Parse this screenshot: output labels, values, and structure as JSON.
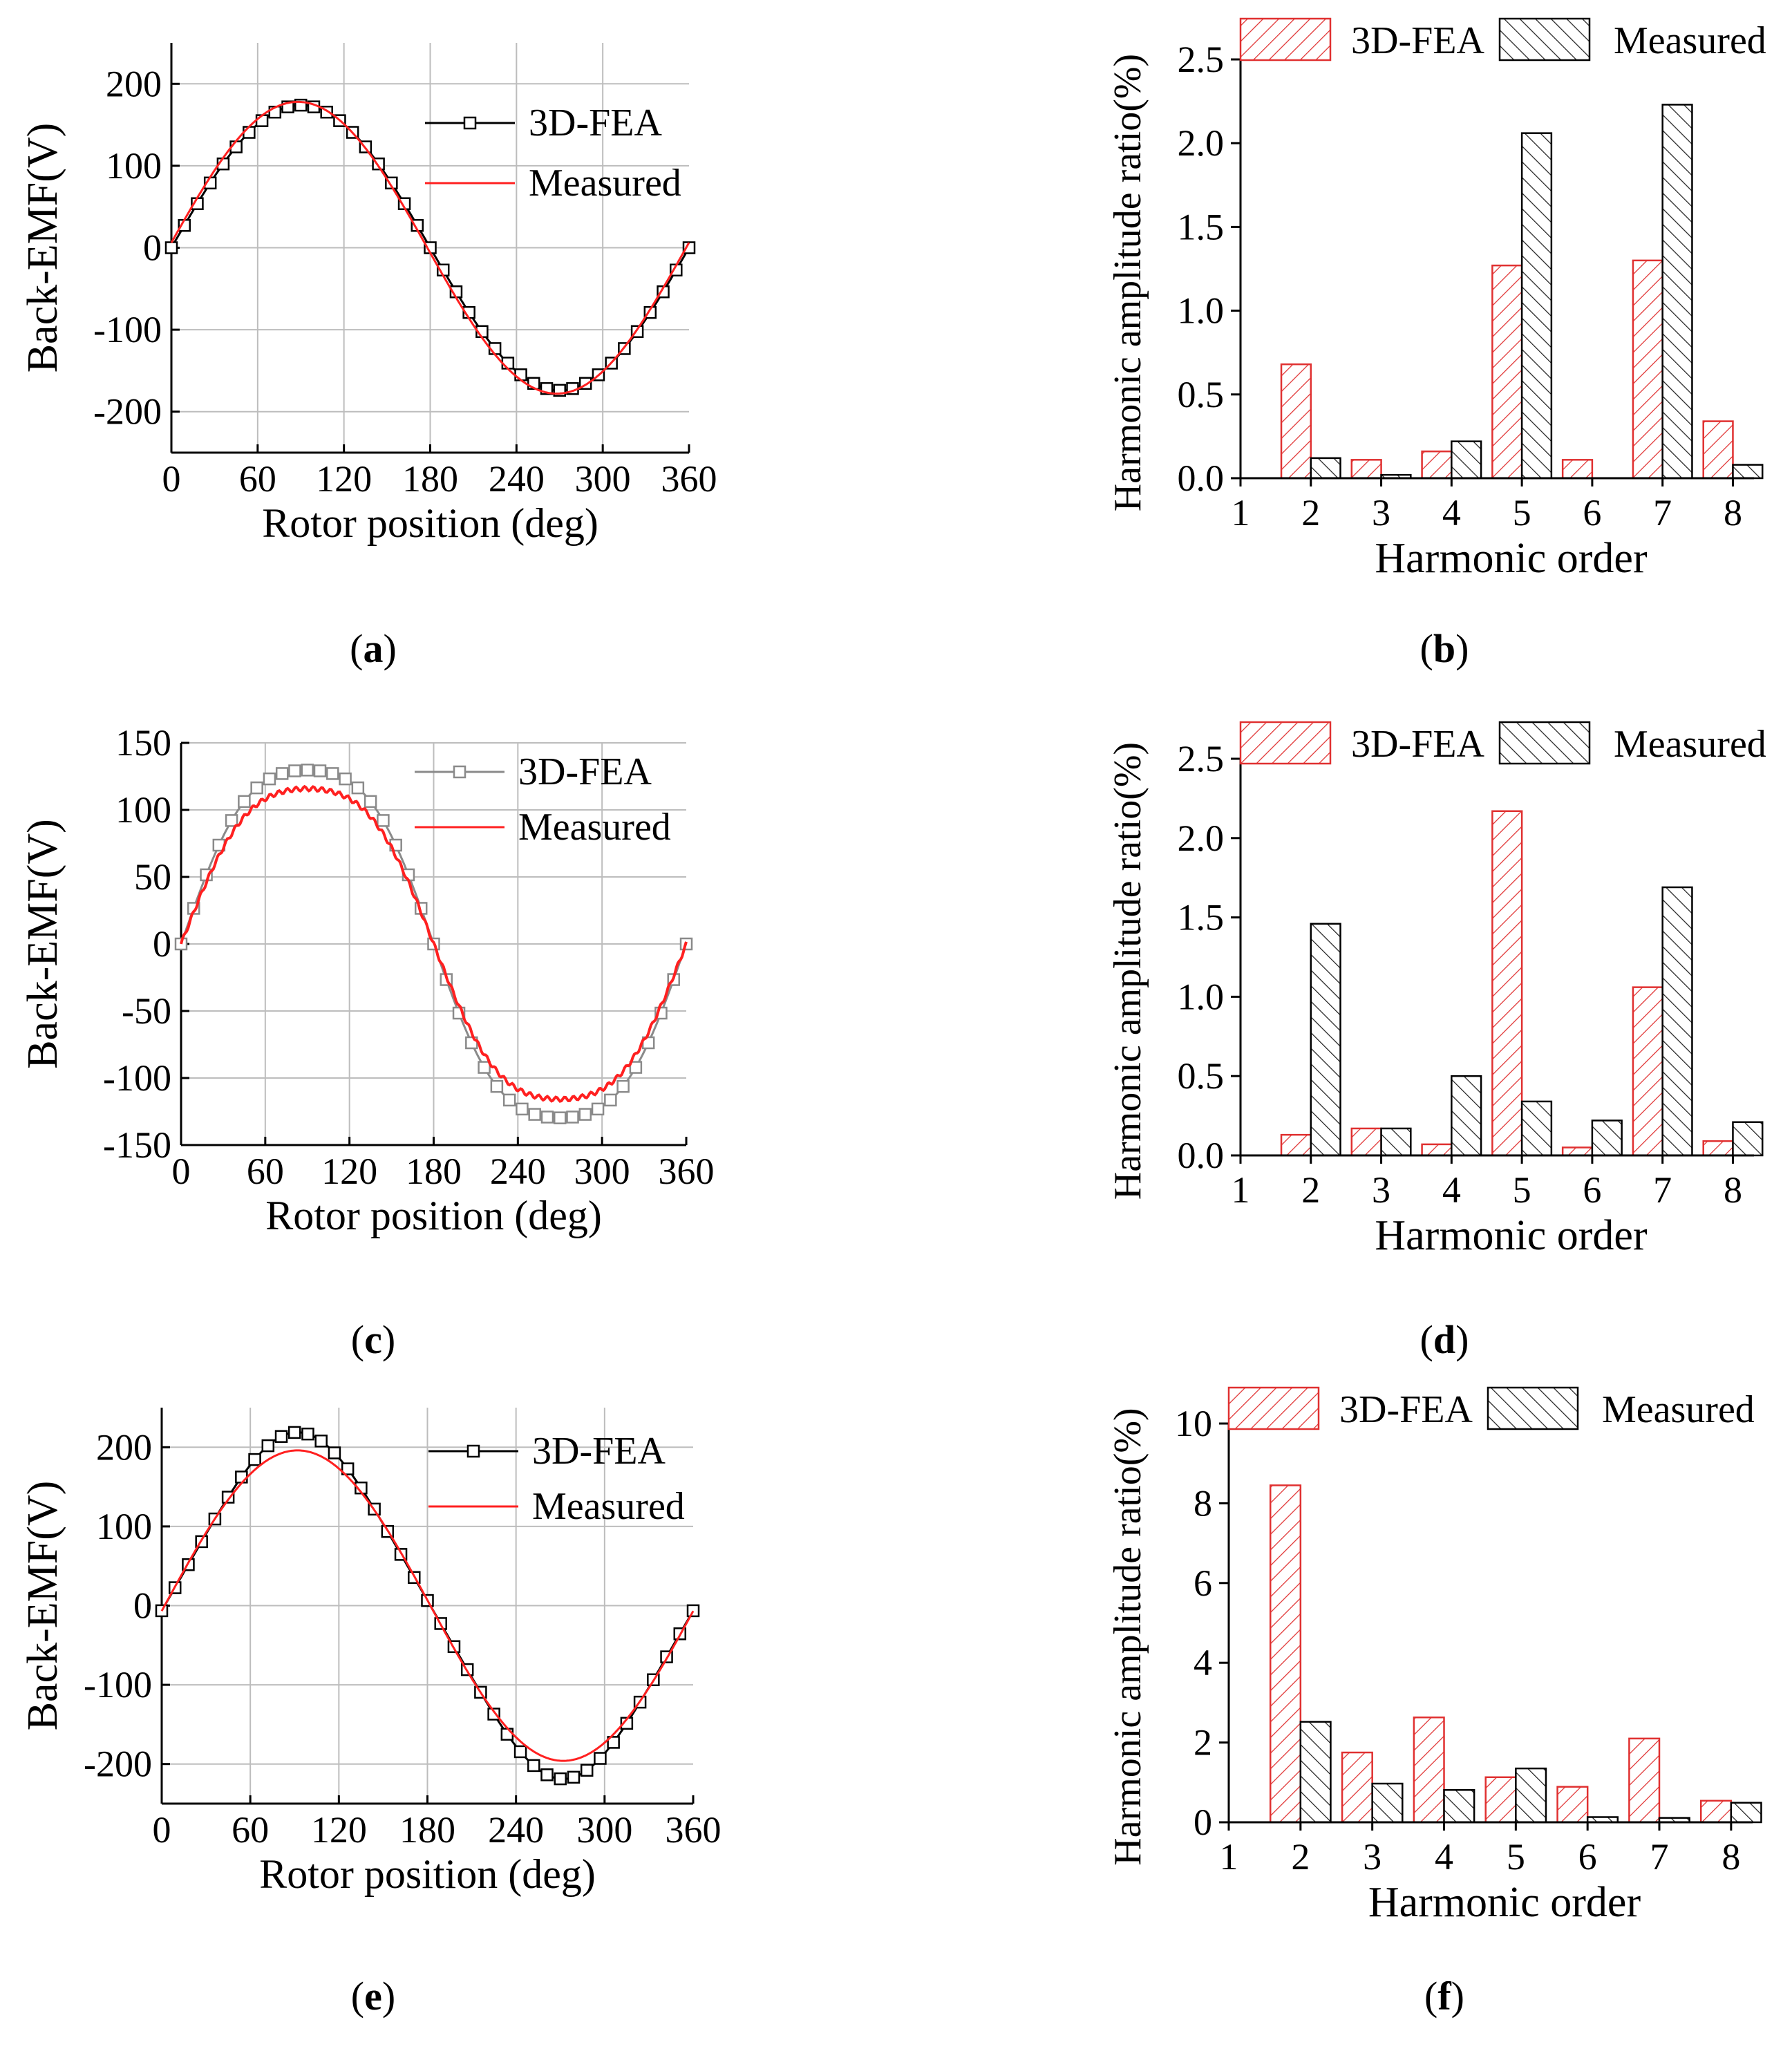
{
  "colors": {
    "fea": "#000000",
    "fea_light": "#8a8a8a",
    "measured": "#ff2020",
    "grid": "#bdbdbd",
    "bar_red": "#e03030",
    "bar_black": "#222222"
  },
  "captions": {
    "a": "a",
    "b": "b",
    "c": "c",
    "d": "d",
    "e": "e",
    "f": "f"
  },
  "chart_data": [
    {
      "id": "a",
      "type": "line",
      "xlabel": "Rotor position (deg)",
      "ylabel": "Back-EMF(V)",
      "xlim": [
        0,
        360
      ],
      "ylim": [
        -250,
        250
      ],
      "xticks": [
        0,
        60,
        120,
        180,
        240,
        300,
        360
      ],
      "yticks": [
        -200,
        -100,
        0,
        100,
        200
      ],
      "grid": true,
      "legend": "top-right",
      "series": [
        {
          "name": "3D-FEA",
          "shape": "sine",
          "amplitude": 174,
          "peak_deg": 90,
          "markers": true
        },
        {
          "name": "Measured",
          "shape": "sine",
          "amplitude": 178,
          "peak_deg": 88,
          "markers": false
        }
      ]
    },
    {
      "id": "b",
      "type": "bar",
      "xlabel": "Harmonic order",
      "ylabel": "Harmonic amplitude ratio(%)",
      "xlim": [
        1,
        8.3
      ],
      "ylim": [
        0,
        2.5
      ],
      "xticks": [
        1,
        2,
        3,
        4,
        5,
        6,
        7,
        8
      ],
      "yticks": [
        0.0,
        0.5,
        1.0,
        1.5,
        2.0,
        2.5
      ],
      "legend": "top",
      "categories": [
        2,
        3,
        4,
        5,
        6,
        7,
        8
      ],
      "series": [
        {
          "name": "3D-FEA",
          "values": [
            0.68,
            0.11,
            0.16,
            1.27,
            0.11,
            1.3,
            0.34
          ]
        },
        {
          "name": "Measured",
          "values": [
            0.12,
            0.02,
            0.22,
            2.06,
            0.0,
            2.23,
            0.08
          ]
        }
      ]
    },
    {
      "id": "c",
      "type": "line",
      "xlabel": "Rotor position (deg)",
      "ylabel": "Back-EMF(V)",
      "xlim": [
        0,
        360
      ],
      "ylim": [
        -150,
        150
      ],
      "xticks": [
        0,
        60,
        120,
        180,
        240,
        300,
        360
      ],
      "yticks": [
        -150,
        -100,
        -50,
        0,
        50,
        100,
        150
      ],
      "grid": true,
      "legend": "top-right",
      "series": [
        {
          "name": "3D-FEA",
          "shape": "flat",
          "amplitude": 140,
          "peak_deg": 90,
          "markers": true
        },
        {
          "name": "Measured",
          "shape": "flat",
          "amplitude": 125,
          "peak_deg": 90,
          "markers": false
        }
      ]
    },
    {
      "id": "d",
      "type": "bar",
      "xlabel": "Harmonic order",
      "ylabel": "Harmonic amplitude ratio(%)",
      "xlim": [
        1,
        8.3
      ],
      "ylim": [
        0,
        2.5
      ],
      "xticks": [
        1,
        2,
        3,
        4,
        5,
        6,
        7,
        8
      ],
      "yticks": [
        0.0,
        0.5,
        1.0,
        1.5,
        2.0,
        2.5
      ],
      "legend": "top",
      "categories": [
        2,
        3,
        4,
        5,
        6,
        7,
        8
      ],
      "series": [
        {
          "name": "3D-FEA",
          "values": [
            0.13,
            0.17,
            0.07,
            2.17,
            0.05,
            1.06,
            0.09
          ]
        },
        {
          "name": "Measured",
          "values": [
            1.46,
            0.17,
            0.5,
            0.34,
            0.22,
            1.69,
            0.21
          ]
        }
      ]
    },
    {
      "id": "e",
      "type": "line",
      "xlabel": "Rotor position (deg)",
      "ylabel": "Back-EMF(V)",
      "xlim": [
        0,
        360
      ],
      "ylim": [
        -250,
        250
      ],
      "xticks": [
        0,
        60,
        120,
        180,
        240,
        300,
        360
      ],
      "yticks": [
        -200,
        -100,
        0,
        100,
        200
      ],
      "grid": true,
      "legend": "top-right",
      "series": [
        {
          "name": "3D-FEA",
          "shape": "peaky",
          "amplitude": 202,
          "peak_deg": 92,
          "markers": true
        },
        {
          "name": "Measured",
          "shape": "sine",
          "amplitude": 196,
          "peak_deg": 92,
          "markers": false
        }
      ]
    },
    {
      "id": "f",
      "type": "bar",
      "xlabel": "Harmonic order",
      "ylabel": "Harmonic amplitude ratio(%)",
      "xlim": [
        1,
        8.3
      ],
      "ylim": [
        0,
        10
      ],
      "xticks": [
        1,
        2,
        3,
        4,
        5,
        6,
        7,
        8
      ],
      "yticks": [
        0,
        2,
        4,
        6,
        8,
        10
      ],
      "legend": "top",
      "categories": [
        2,
        3,
        4,
        5,
        6,
        7,
        8
      ],
      "series": [
        {
          "name": "3D-FEA",
          "values": [
            8.45,
            1.75,
            2.63,
            1.13,
            0.89,
            2.1,
            0.54
          ]
        },
        {
          "name": "Measured",
          "values": [
            2.52,
            0.97,
            0.81,
            1.35,
            0.13,
            0.11,
            0.49
          ]
        }
      ]
    }
  ]
}
